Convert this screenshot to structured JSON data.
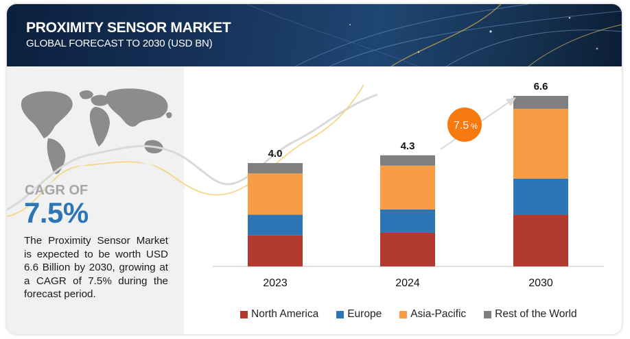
{
  "header": {
    "title": "PROXIMITY SENSOR MARKET",
    "subtitle": "GLOBAL FORECAST TO 2030 (USD BN)"
  },
  "summary": {
    "cagr_label": "CAGR OF",
    "cagr_value": "7.5%",
    "description": "The Proximity Sensor Market is expected to be worth USD 6.6 Billion by 2030, growing at a CAGR of 7.5% during the forecast period."
  },
  "growth_badge": {
    "value": "7.5",
    "unit": "%"
  },
  "colors": {
    "north_america": "#b23a2f",
    "europe": "#2e75b6",
    "asia_pacific": "#f89c45",
    "rest_of_world": "#7f7f7f",
    "badge": "#f77a10",
    "accent_blue": "#2e75b6"
  },
  "chart_data": {
    "type": "bar",
    "stacked": true,
    "categories": [
      "2023",
      "2024",
      "2030"
    ],
    "totals": [
      4.0,
      4.3,
      6.6
    ],
    "total_labels": [
      "4.0",
      "4.3",
      "6.6"
    ],
    "ylim": [
      0,
      6.6
    ],
    "grid": false,
    "legend_position": "bottom",
    "series": [
      {
        "name": "North America",
        "color": "#b23a2f",
        "values": [
          1.2,
          1.3,
          2.0
        ]
      },
      {
        "name": "Europe",
        "color": "#2e75b6",
        "values": [
          0.8,
          0.9,
          1.4
        ]
      },
      {
        "name": "Asia-Pacific",
        "color": "#f89c45",
        "values": [
          1.6,
          1.7,
          2.7
        ]
      },
      {
        "name": "Rest of the World",
        "color": "#7f7f7f",
        "values": [
          0.4,
          0.4,
          0.5
        ]
      }
    ]
  }
}
